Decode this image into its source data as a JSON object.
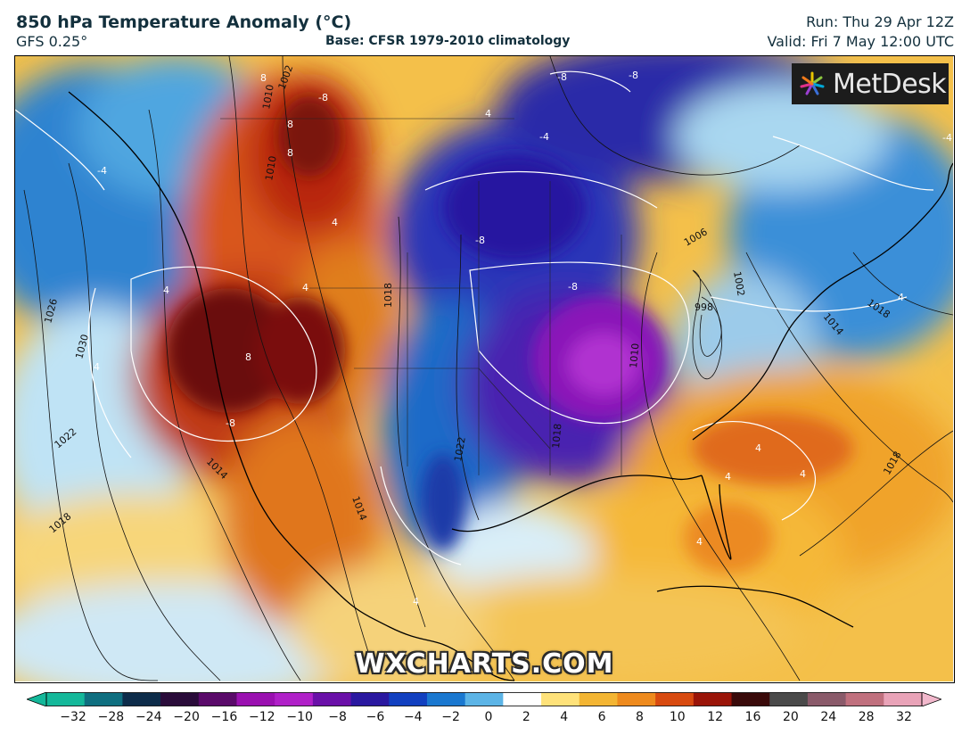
{
  "header": {
    "title": "850 hPa Temperature Anomaly (°C)",
    "model": "GFS 0.25°",
    "base": "Base: CFSR 1979-2010 climatology",
    "run": "Run: Thu 29 Apr 12Z",
    "valid": "Valid: Fri 7 May 12:00 UTC"
  },
  "logo": {
    "text": "MetDesk",
    "icon": "metdesk-star-icon"
  },
  "watermark": "WXCHARTS.COM",
  "colorbar": {
    "ticks": [
      "−32",
      "−28",
      "−24",
      "−20",
      "−16",
      "−12",
      "−10",
      "−8",
      "−6",
      "−4",
      "−2",
      "0",
      "2",
      "4",
      "6",
      "8",
      "10",
      "12",
      "16",
      "20",
      "24",
      "28",
      "32"
    ],
    "colors": [
      "#14b89a",
      "#0f6f80",
      "#0d2c4a",
      "#2a0c3a",
      "#5a0a6a",
      "#9a10b0",
      "#b020c8",
      "#6a10a8",
      "#2a18a0",
      "#1240c0",
      "#1a78d0",
      "#5cb4e6",
      "#ffffff",
      "#ffe27a",
      "#f3b533",
      "#ee8a1d",
      "#d84a10",
      "#9a1408",
      "#3a0a0a",
      "#4a4a4a",
      "#8a5a6a",
      "#c0707e",
      "#e9a3b8"
    ]
  },
  "map": {
    "isobar_labels": [
      "1002",
      "1010",
      "1026",
      "1030",
      "1022",
      "1014",
      "1018",
      "1018",
      "1010",
      "1006",
      "1002",
      "998",
      "1014",
      "1018",
      "1022",
      "1018",
      "1010",
      "1014",
      "1018"
    ],
    "anomaly_labels": [
      "-8",
      "4",
      "8",
      "-8",
      "4",
      "-8",
      "8",
      "8",
      "-8",
      "4",
      "-4",
      "4",
      "4",
      "-4",
      "4",
      "4",
      "4",
      "4",
      "4",
      "-8",
      "-4",
      "8",
      "4",
      "-8"
    ]
  }
}
